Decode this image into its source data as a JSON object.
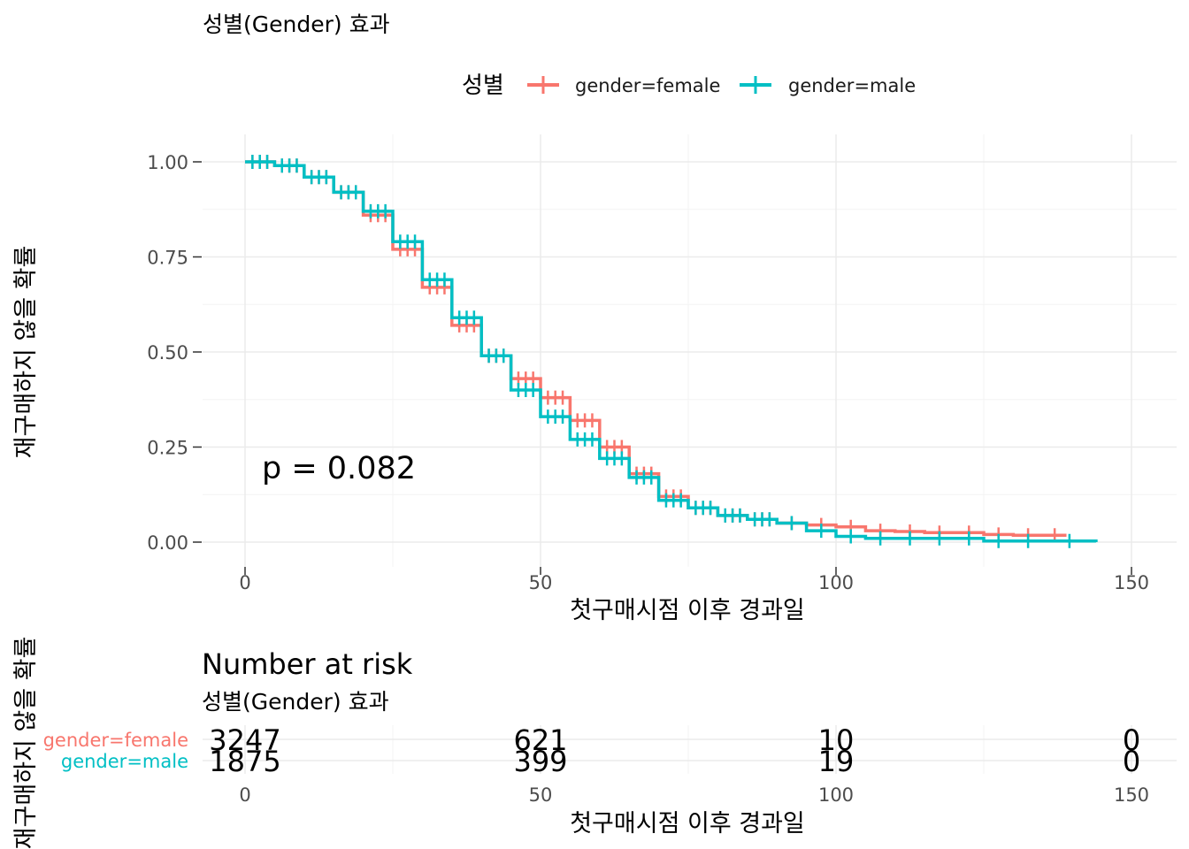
{
  "chart_data": [
    {
      "type": "line",
      "title": "성별(Gender) 효과",
      "xlabel": "첫구매시점 이후 경과일",
      "ylabel": "재구매하지 않을 확률",
      "xlim": [
        0,
        150
      ],
      "ylim": [
        0,
        1
      ],
      "x_ticks": [
        "0",
        "50",
        "100",
        "150"
      ],
      "y_ticks": [
        "0.00",
        "0.25",
        "0.50",
        "0.75",
        "1.00"
      ],
      "grid": true,
      "legend": {
        "title": "성별",
        "position": "top"
      },
      "annotation": "p = 0.082",
      "series": [
        {
          "name": "gender=female",
          "color": "#F8766D",
          "x": [
            0,
            5,
            10,
            15,
            20,
            25,
            30,
            35,
            40,
            45,
            50,
            55,
            60,
            65,
            70,
            75,
            80,
            85,
            90,
            95,
            100,
            105,
            110,
            115,
            120,
            125,
            130,
            135,
            139
          ],
          "y": [
            1.0,
            0.99,
            0.96,
            0.92,
            0.86,
            0.77,
            0.67,
            0.57,
            0.49,
            0.43,
            0.38,
            0.32,
            0.25,
            0.18,
            0.12,
            0.09,
            0.07,
            0.06,
            0.05,
            0.045,
            0.04,
            0.03,
            0.028,
            0.025,
            0.025,
            0.02,
            0.018,
            0.018,
            0.018
          ]
        },
        {
          "name": "gender=male",
          "color": "#00BFC4",
          "x": [
            0,
            5,
            10,
            15,
            20,
            25,
            30,
            35,
            40,
            45,
            50,
            55,
            60,
            65,
            70,
            75,
            80,
            85,
            90,
            95,
            100,
            105,
            110,
            115,
            120,
            125,
            130,
            135,
            144
          ],
          "y": [
            1.0,
            0.99,
            0.96,
            0.92,
            0.87,
            0.79,
            0.69,
            0.59,
            0.49,
            0.4,
            0.33,
            0.27,
            0.22,
            0.17,
            0.11,
            0.09,
            0.07,
            0.06,
            0.05,
            0.03,
            0.015,
            0.01,
            0.01,
            0.01,
            0.01,
            0.003,
            0.003,
            0.003,
            0.0
          ]
        }
      ]
    },
    {
      "type": "table",
      "title": "Number at risk",
      "subtitle": "성별(Gender) 효과",
      "xlabel": "첫구매시점 이후 경과일",
      "ylabel": "재구매하지 않을 확률",
      "x_ticks": [
        "0",
        "50",
        "100",
        "150"
      ],
      "xlim": [
        0,
        150
      ],
      "times": [
        0,
        50,
        100,
        150
      ],
      "rows": [
        {
          "name": "gender=female",
          "color": "#F8766D",
          "values": [
            "3247",
            "621",
            "10",
            "0"
          ]
        },
        {
          "name": "gender=male",
          "color": "#00BFC4",
          "values": [
            "1875",
            "399",
            "19",
            "0"
          ]
        }
      ]
    }
  ]
}
